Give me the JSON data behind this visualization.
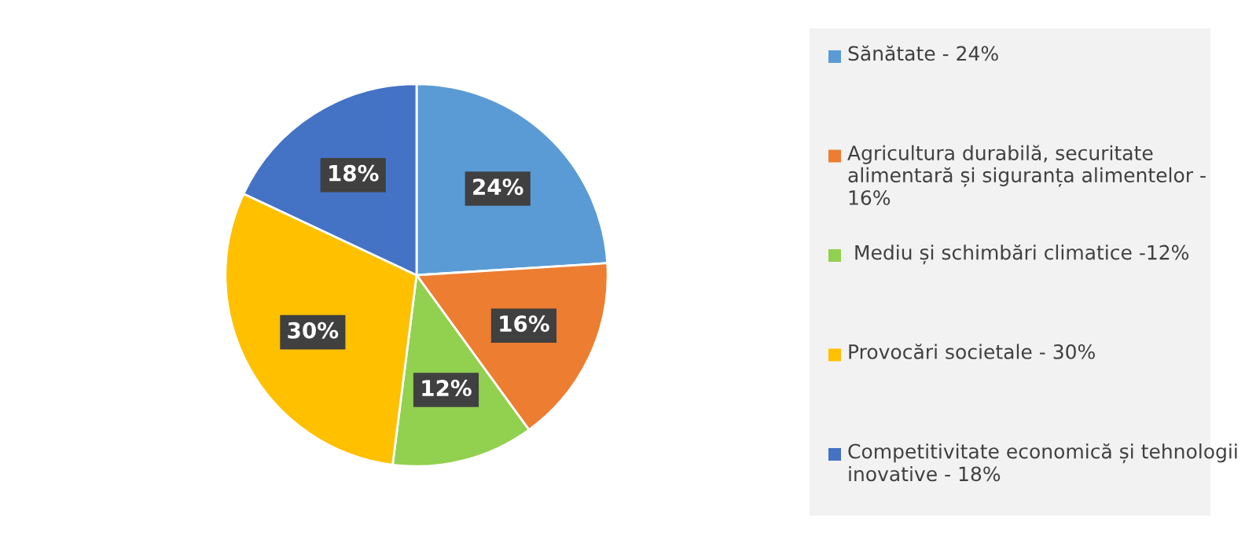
{
  "chart_data": {
    "type": "pie",
    "categories": [
      "Sănătate - 24%",
      "Agricultura durabilă, securitate alimentară și siguranța alimentelor - 16%",
      " Mediu și schimbări climatice -12%",
      "Provocări societale - 30%",
      "Competitivitate economică și tehnologii inovative - 18%"
    ],
    "values": [
      24,
      16,
      12,
      30,
      18
    ],
    "value_labels": [
      "24%",
      "16%",
      "12%",
      "30%",
      "18%"
    ],
    "colors": [
      "#5b9bd5",
      "#ed7d31",
      "#92d050",
      "#ffc000",
      "#4472c4"
    ],
    "legend": "right"
  }
}
